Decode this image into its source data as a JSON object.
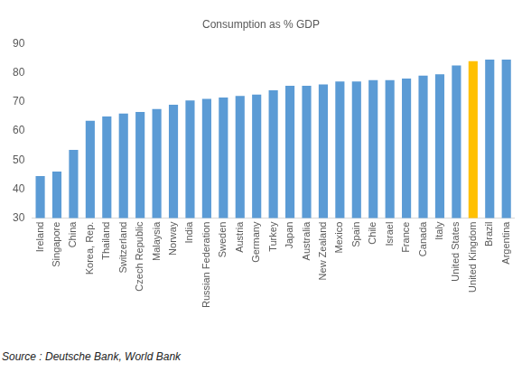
{
  "chart_data": {
    "type": "bar",
    "title": "Consumption as % GDP",
    "categories": [
      "Ireland",
      "Singapore",
      "China",
      "Korea, Rep.",
      "Thailand",
      "Switzerland",
      "Czech Republic",
      "Malaysia",
      "Norway",
      "India",
      "Russian Federation",
      "Sweden",
      "Austria",
      "Germany",
      "Turkey",
      "Japan",
      "Australia",
      "New Zealand",
      "Mexico",
      "Spain",
      "Chile",
      "Israel",
      "France",
      "Canada",
      "Italy",
      "United States",
      "United Kingdom",
      "Brazil",
      "Argentina"
    ],
    "values": [
      44.5,
      46,
      53.5,
      63.5,
      65,
      66,
      66.5,
      67.5,
      69,
      70.5,
      71,
      71.5,
      72,
      72.5,
      74,
      75.5,
      75.5,
      76,
      77,
      77,
      77.5,
      77.5,
      78,
      79,
      79.5,
      82.5,
      84,
      84.5,
      84.5
    ],
    "colors": [
      "#5b9bd5",
      "#5b9bd5",
      "#5b9bd5",
      "#5b9bd5",
      "#5b9bd5",
      "#5b9bd5",
      "#5b9bd5",
      "#5b9bd5",
      "#5b9bd5",
      "#5b9bd5",
      "#5b9bd5",
      "#5b9bd5",
      "#5b9bd5",
      "#5b9bd5",
      "#5b9bd5",
      "#5b9bd5",
      "#5b9bd5",
      "#5b9bd5",
      "#5b9bd5",
      "#5b9bd5",
      "#5b9bd5",
      "#5b9bd5",
      "#5b9bd5",
      "#5b9bd5",
      "#5b9bd5",
      "#5b9bd5",
      "#ffc000",
      "#5b9bd5",
      "#5b9bd5"
    ],
    "ylim": [
      30,
      90
    ],
    "yticks": [
      30,
      40,
      50,
      60,
      70,
      80,
      90
    ],
    "grid": false,
    "annotations": [
      "Source : Deutsche Bank, World Bank"
    ]
  }
}
